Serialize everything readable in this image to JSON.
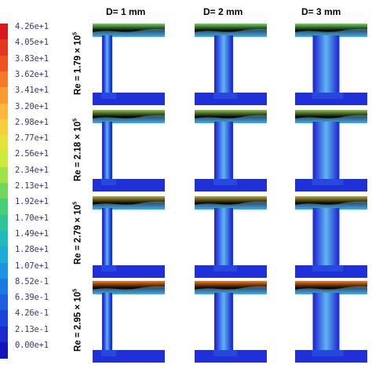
{
  "legend": {
    "ticks": [
      "4.26e+1",
      "4.05e+1",
      "3.83e+1",
      "3.62e+1",
      "3.41e+1",
      "3.20e+1",
      "2.98e+1",
      "2.77e+1",
      "2.56e+1",
      "2.34e+1",
      "2.13e+1",
      "1.92e+1",
      "1.70e+1",
      "1.49e+1",
      "1.28e+1",
      "1.07e+1",
      "8.52e-1",
      "6.39e-1",
      "4.26e-1",
      "2.13e-1",
      "0.00e+1"
    ],
    "colors": [
      "#d7191c",
      "#e3361d",
      "#ee5421",
      "#f47a2a",
      "#f99b32",
      "#fbb83a",
      "#f6cf3e",
      "#e5e13d",
      "#c9ec3f",
      "#9fe34a",
      "#6fd85a",
      "#48cd78",
      "#2fc39a",
      "#22b8bd",
      "#1eaad7",
      "#1e92e3",
      "#1e78e3",
      "#1e5ee0",
      "#1b44d8",
      "#1a2bcb",
      "#1414bb"
    ]
  },
  "columns": [
    "D=  1 mm",
    "D= 2 mm",
    "D= 3 mm"
  ],
  "rows": [
    {
      "label_prefix": "Re = 1.79 × 10",
      "label_exp": "5"
    },
    {
      "label_prefix": "Re = 2.18 × 10",
      "label_exp": "5"
    },
    {
      "label_prefix": "Re = 2.79 × 10",
      "label_exp": "5"
    },
    {
      "label_prefix": "Re = 2.95 × 10",
      "label_exp": "5"
    }
  ],
  "panels": {
    "colors": {
      "background": "#2030d8",
      "upper_flow_low": "#70d868",
      "upper_flow_high": "#f08028",
      "outlet_flow": "#4aa8e8",
      "stem_core": "#5fb4ee"
    },
    "row_top_intensity": [
      0.05,
      0.25,
      0.55,
      1.0
    ],
    "diameters_mm": [
      1,
      2,
      3
    ]
  }
}
